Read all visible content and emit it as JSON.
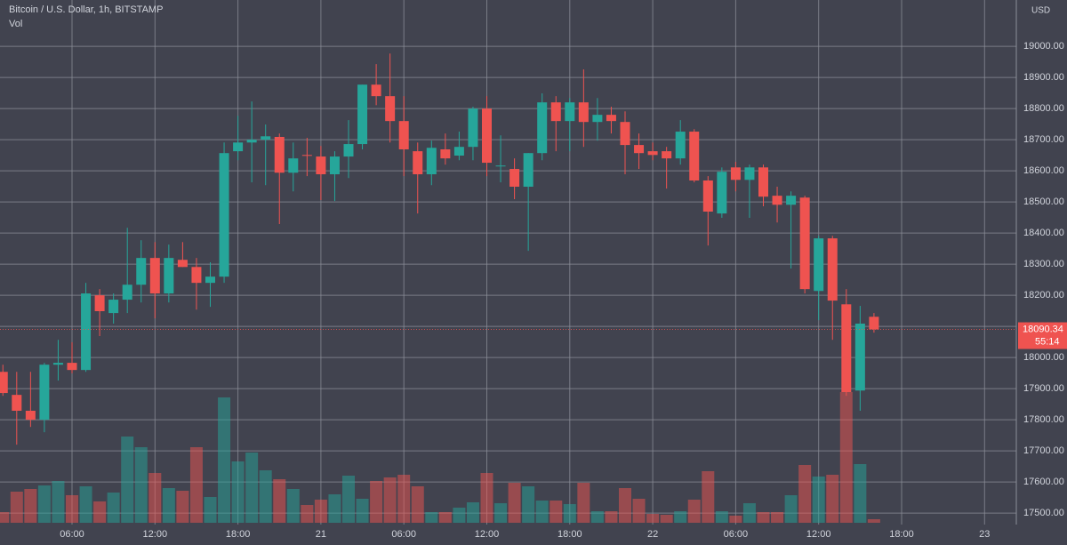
{
  "chart_data": {
    "type": "candlestick",
    "title": "Bitcoin / U.S. Dollar, 1h, BITSTAMP",
    "volume_label": "Vol",
    "currency": "USD",
    "countdown": "55:14",
    "categories": [
      null,
      null,
      null,
      null,
      null,
      "06:00",
      null,
      null,
      null,
      null,
      null,
      "12:00",
      null,
      null,
      null,
      null,
      null,
      "18:00",
      null,
      null,
      null,
      null,
      null,
      "21",
      null,
      null,
      null,
      null,
      null,
      "06:00",
      null,
      null,
      null,
      null,
      null,
      "12:00",
      null,
      null,
      null,
      null,
      null,
      "18:00",
      null,
      null,
      null,
      null,
      null,
      "22",
      null,
      null,
      null,
      null,
      null,
      "06:00",
      null,
      null,
      null,
      null,
      null,
      "12:00",
      null,
      null,
      null,
      null,
      null,
      "18:00",
      null,
      null,
      null,
      null,
      null,
      "23",
      null,
      null
    ],
    "open": [
      17954,
      17880,
      17829,
      17800,
      17977,
      17983,
      17960,
      18200,
      18143,
      18186,
      18234,
      18320,
      18206,
      18314,
      18291,
      18240,
      18260,
      18663,
      18691,
      18700,
      18709,
      18594,
      18651,
      18646,
      18589,
      18646,
      18686,
      18877,
      18840,
      18760,
      18663,
      18589,
      18669,
      18649,
      18677,
      18800,
      18617,
      18606,
      18549,
      18657,
      18820,
      18760,
      18820,
      18757,
      18780,
      18757,
      18683,
      18663,
      18663,
      18640,
      18726,
      18569,
      18463,
      18611,
      18571,
      18611,
      18520,
      18491,
      18514,
      18214,
      18383,
      18171,
      17894,
      18131,
      null,
      null,
      null,
      null,
      null,
      null,
      null,
      null,
      null,
      null
    ],
    "high": [
      17977,
      17954,
      17954,
      17983,
      18057,
      18049,
      18240,
      18220,
      18206,
      18417,
      18377,
      18371,
      18363,
      18371,
      18320,
      18306,
      18691,
      18777,
      18823,
      18749,
      18720,
      18691,
      18706,
      18680,
      18663,
      18763,
      18877,
      18943,
      18977,
      18840,
      18691,
      18697,
      18720,
      18726,
      18806,
      18840,
      18714,
      18640,
      18657,
      18849,
      18840,
      18834,
      18926,
      18834,
      18806,
      18791,
      18720,
      18691,
      18677,
      18763,
      18734,
      18583,
      18611,
      18629,
      18620,
      18620,
      18549,
      18534,
      18520,
      18391,
      18391,
      18220,
      18166,
      18143,
      null,
      null,
      null,
      null,
      null,
      null,
      null,
      null,
      null,
      null
    ],
    "low": [
      17877,
      17720,
      17777,
      17760,
      17926,
      17949,
      17954,
      18069,
      18109,
      18143,
      18177,
      18126,
      18177,
      18291,
      18154,
      18163,
      18240,
      18634,
      18563,
      18554,
      18429,
      18534,
      18583,
      18506,
      18503,
      18577,
      18669,
      18811,
      18691,
      18583,
      18463,
      18554,
      18620,
      18634,
      18634,
      18583,
      18563,
      18509,
      18343,
      18634,
      18663,
      18663,
      18677,
      18697,
      18720,
      18589,
      18606,
      18634,
      18543,
      18620,
      18563,
      18360,
      18449,
      18534,
      18449,
      18486,
      18434,
      18286,
      18206,
      18120,
      18057,
      17877,
      17829,
      18080,
      null,
      null,
      null,
      null,
      null,
      null,
      null,
      null,
      null,
      null
    ],
    "close": [
      17886,
      17829,
      17800,
      17977,
      17983,
      17960,
      18206,
      18149,
      18186,
      18234,
      18320,
      18206,
      18320,
      18291,
      18240,
      18260,
      18657,
      18691,
      18700,
      18711,
      18594,
      18640,
      18649,
      18589,
      18646,
      18686,
      18877,
      18840,
      18760,
      18669,
      18589,
      18674,
      18640,
      18677,
      18800,
      18626,
      18617,
      18549,
      18657,
      18820,
      18760,
      18820,
      18757,
      18780,
      18760,
      18683,
      18657,
      18651,
      18640,
      18726,
      18569,
      18469,
      18597,
      18571,
      18611,
      18517,
      18491,
      18520,
      18220,
      18383,
      18183,
      17889,
      18109,
      18090.34,
      null,
      null,
      null,
      null,
      null,
      null,
      null,
      null,
      null,
      null
    ],
    "volume": [
      12,
      35,
      38,
      42,
      47,
      31,
      41,
      24,
      34,
      97,
      85,
      56,
      39,
      36,
      85,
      29,
      141,
      69,
      79,
      59,
      49,
      38,
      20,
      26,
      32,
      53,
      27,
      47,
      51,
      54,
      41,
      12,
      12,
      17,
      23,
      56,
      22,
      45,
      41,
      25,
      25,
      21,
      45,
      13,
      13,
      39,
      27,
      10,
      9,
      13,
      26,
      58,
      13,
      8,
      22,
      12,
      12,
      31,
      65,
      52,
      54,
      147,
      66,
      4,
      null,
      null,
      null,
      null,
      null,
      null,
      null,
      null,
      null,
      null
    ],
    "up_color": "#26a69a",
    "down_color": "#ef5350",
    "ylim": [
      17469,
      19149
    ],
    "yticks": [
      {
        "value": 17500,
        "label": "17500.00"
      },
      {
        "value": 17600,
        "label": "17600.00"
      },
      {
        "value": 17700,
        "label": "17700.00"
      },
      {
        "value": 17800,
        "label": "17800.00"
      },
      {
        "value": 17900,
        "label": "17900.00"
      },
      {
        "value": 18000,
        "label": "18000.00"
      },
      {
        "value": 18100,
        "label": "18100.00"
      },
      {
        "value": 18200,
        "label": "18200.00"
      },
      {
        "value": 18300,
        "label": "18300.00"
      },
      {
        "value": 18400,
        "label": "18400.00"
      },
      {
        "value": 18500,
        "label": "18500.00"
      },
      {
        "value": 18600,
        "label": "18600.00"
      },
      {
        "value": 18700,
        "label": "18700.00"
      },
      {
        "value": 18800,
        "label": "18800.00"
      },
      {
        "value": 18900,
        "label": "18900.00"
      },
      {
        "value": 19000,
        "label": "19000.00"
      }
    ],
    "grid": true
  }
}
